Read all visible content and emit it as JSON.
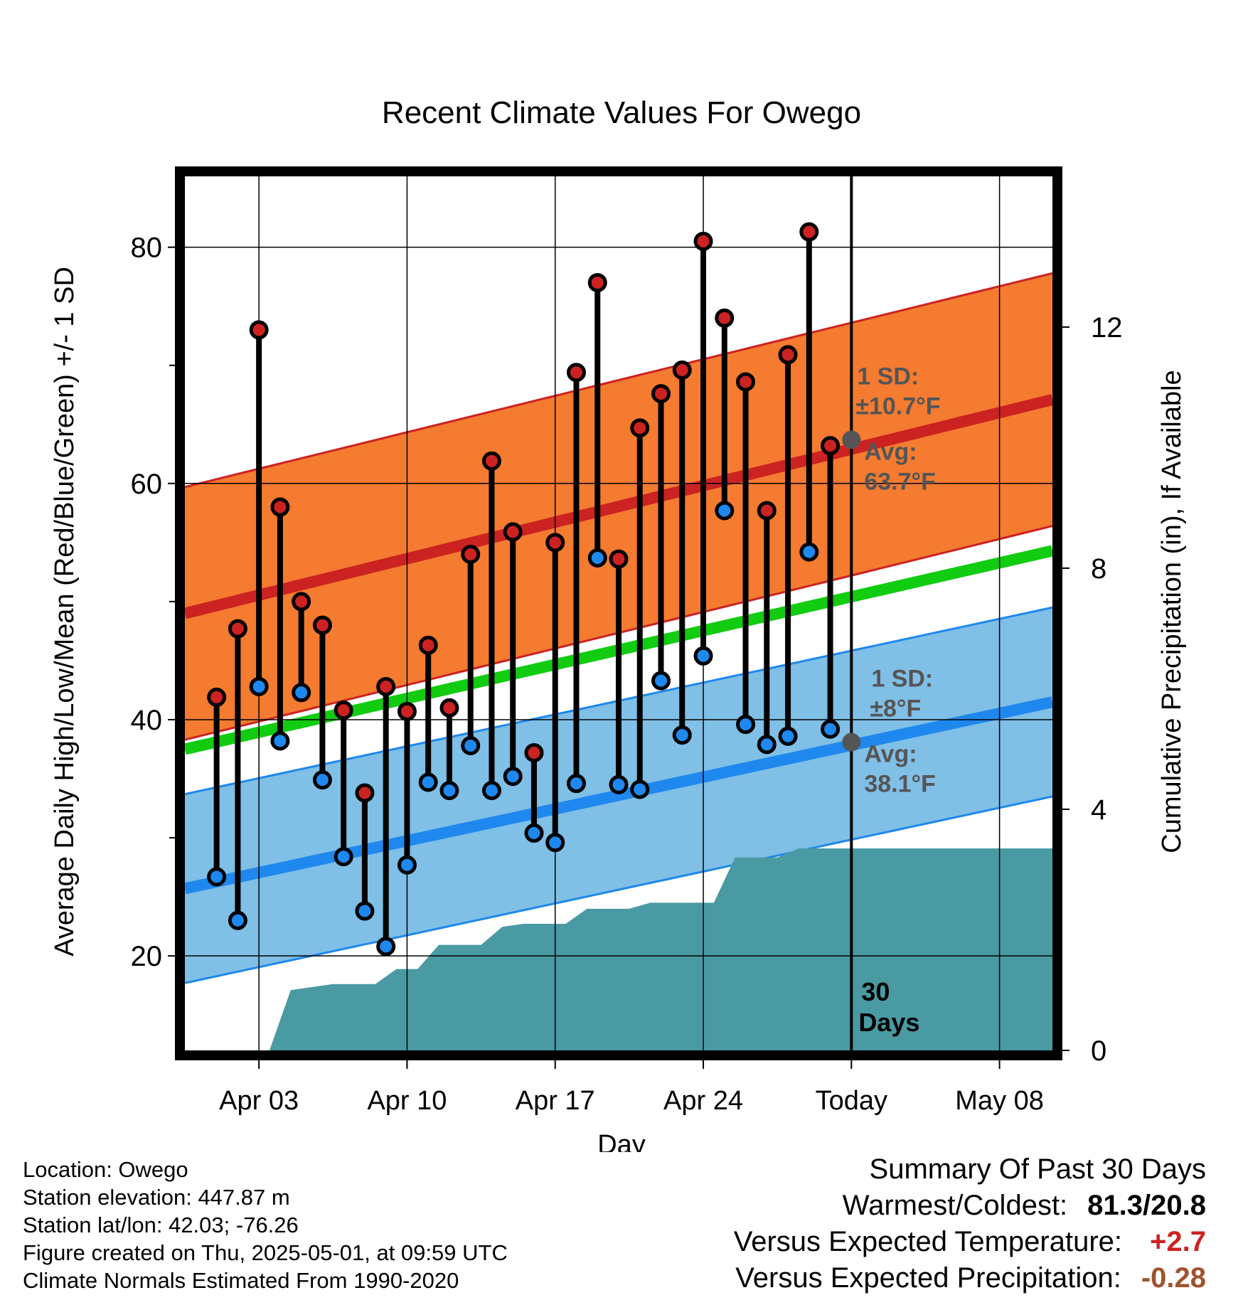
{
  "chart_data": {
    "type": "line",
    "title": "Recent Climate Values For Owego",
    "xlabel": "Day",
    "ylabel": "Average Daily High/Low/Mean (Red/Blue/Green) +/- 1 SD",
    "y2label": "Cumulative Precipitation (in), If Available",
    "ylim": [
      12,
      86
    ],
    "y2lim": [
      0,
      14.5
    ],
    "xlim_days": [
      -0.5,
      40.5
    ],
    "x_ticks": [
      {
        "day": 3,
        "label": "Apr 03"
      },
      {
        "day": 10,
        "label": "Apr 10"
      },
      {
        "day": 17,
        "label": "Apr 17"
      },
      {
        "day": 24,
        "label": "Apr 24"
      },
      {
        "day": 31,
        "label": "Today"
      },
      {
        "day": 38,
        "label": "May 08"
      }
    ],
    "y_ticks": [
      20,
      40,
      60,
      80
    ],
    "y2_ticks": [
      0,
      4,
      8,
      12
    ],
    "grid": true,
    "today_day": 31,
    "today_label": "30\nDays",
    "daily_days": [
      1,
      2,
      3,
      4,
      5,
      6,
      7,
      8,
      9,
      10,
      11,
      12,
      13,
      14,
      15,
      16,
      17,
      18,
      19,
      20,
      21,
      22,
      23,
      24,
      25,
      26,
      27,
      28,
      29,
      30
    ],
    "daily_high": [
      41.9,
      47.7,
      73.0,
      58.0,
      50.0,
      48.0,
      40.8,
      33.8,
      42.8,
      40.7,
      46.3,
      41.0,
      54.0,
      61.9,
      55.9,
      37.2,
      55.0,
      69.4,
      77.0,
      53.6,
      64.7,
      67.6,
      69.6,
      80.5,
      74.0,
      68.6,
      57.7,
      70.9,
      81.3,
      63.2
    ],
    "daily_low": [
      26.7,
      23.0,
      42.8,
      38.2,
      42.3,
      34.9,
      28.4,
      23.8,
      20.8,
      27.7,
      34.7,
      34.0,
      37.8,
      34.0,
      35.2,
      30.4,
      29.6,
      34.6,
      53.7,
      34.5,
      34.1,
      43.3,
      38.7,
      45.4,
      57.7,
      39.6,
      37.9,
      38.6,
      54.2,
      39.2
    ],
    "normal_high": {
      "start": 49.0,
      "end": 67.1,
      "sd": 10.7
    },
    "normal_low": {
      "start": 25.7,
      "end": 41.5,
      "sd": 8.0
    },
    "normal_mean": {
      "start": 37.5,
      "end": 54.3
    },
    "today_avg_high": 63.7,
    "today_avg_low": 38.1,
    "precip_steps": [
      [
        -0.5,
        0.0
      ],
      [
        1.5,
        0.0
      ],
      [
        2.5,
        0.0
      ],
      [
        3.5,
        0.0
      ],
      [
        4.5,
        1.0
      ],
      [
        5.5,
        1.05
      ],
      [
        6.5,
        1.1
      ],
      [
        7.5,
        1.1
      ],
      [
        8.5,
        1.1
      ],
      [
        9.5,
        1.35
      ],
      [
        10.5,
        1.35
      ],
      [
        11.5,
        1.75
      ],
      [
        12.5,
        1.75
      ],
      [
        13.5,
        1.75
      ],
      [
        14.5,
        2.05
      ],
      [
        15.5,
        2.1
      ],
      [
        16.5,
        2.1
      ],
      [
        17.5,
        2.1
      ],
      [
        18.5,
        2.35
      ],
      [
        19.5,
        2.35
      ],
      [
        20.5,
        2.35
      ],
      [
        21.5,
        2.45
      ],
      [
        22.5,
        2.45
      ],
      [
        23.5,
        2.45
      ],
      [
        24.5,
        2.45
      ],
      [
        25.5,
        3.2
      ],
      [
        26.5,
        3.2
      ],
      [
        27.5,
        3.2
      ],
      [
        28.5,
        3.35
      ],
      [
        40.5,
        3.35
      ]
    ],
    "annotations": {
      "high_sd_label": "1 SD:",
      "high_sd_value": "±10.7°F",
      "high_avg_label": "Avg:",
      "high_avg_value": "63.7°F",
      "low_sd_label": "1 SD:",
      "low_sd_value": "±8°F",
      "low_avg_label": "Avg:",
      "low_avg_value": "38.1°F",
      "days_line1": "30",
      "days_line2": "Days"
    }
  },
  "colors": {
    "high_band": "#f47b30",
    "high_line": "#cc2222",
    "low_band": "#80bfe6",
    "low_line": "#1e88ee",
    "mean_line": "#11cc11",
    "precip": "#4a9aa3",
    "high_dot": "#cc2222",
    "low_dot": "#1e88ee",
    "annotation": "#555555",
    "positive": "#cc2222",
    "precip_anomaly": "#a0522d"
  },
  "info": {
    "location": "Location: Owego",
    "elevation": "Station elevation: 447.87 m",
    "latlon": "Station lat/lon: 42.03; -76.26",
    "created": "Figure created on Thu, 2025-05-01, at 09:59 UTC",
    "normals": "Climate Normals Estimated From 1990-2020"
  },
  "summary": {
    "title": "Summary Of Past 30 Days",
    "warmcold_label": "Warmest/Coldest:",
    "warmcold_value": "81.3/20.8",
    "temp_label": "Versus Expected Temperature:",
    "temp_value": "+2.7",
    "precip_label": "Versus Expected Precipitation:",
    "precip_value": "-0.28"
  }
}
